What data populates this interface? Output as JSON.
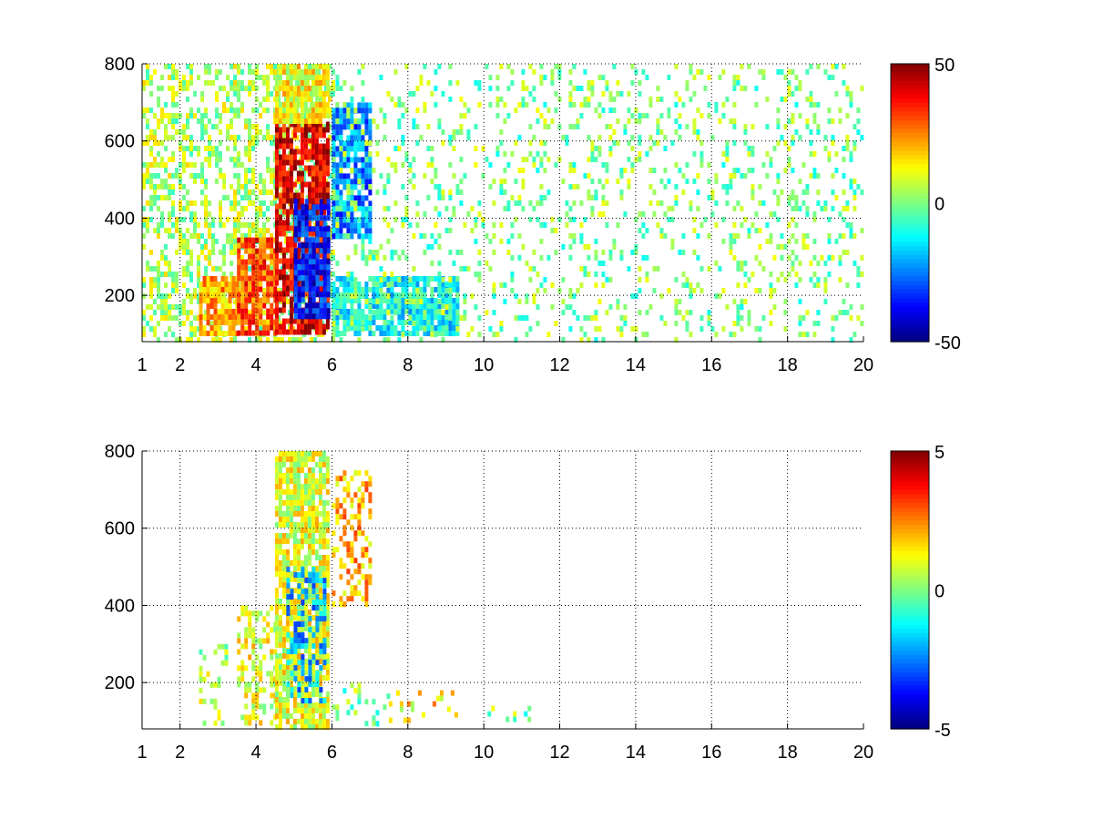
{
  "chart_data": [
    {
      "type": "heatmap",
      "title": "",
      "xlabel": "",
      "ylabel": "",
      "xlim": [
        1,
        20
      ],
      "ylim": [
        80,
        800
      ],
      "xticks": [
        1,
        2,
        4,
        6,
        8,
        10,
        12,
        14,
        16,
        18,
        20
      ],
      "yticks": [
        200,
        400,
        600,
        800
      ],
      "grid": true,
      "colormap": "jet",
      "colorbar": {
        "clim": [
          -50,
          50
        ],
        "ticks": [
          50,
          0,
          -50
        ]
      },
      "regions": [
        {
          "x": [
            1.0,
            6.0
          ],
          "y": [
            80,
            800
          ],
          "level": "scattered",
          "value": 5
        },
        {
          "x": [
            2.5,
            3.5
          ],
          "y": [
            100,
            250
          ],
          "level": "dense",
          "value": 20
        },
        {
          "x": [
            3.5,
            4.5
          ],
          "y": [
            100,
            350
          ],
          "level": "dense",
          "value": 30
        },
        {
          "x": [
            4.5,
            5.9
          ],
          "y": [
            100,
            650
          ],
          "level": "dense",
          "value": 40
        },
        {
          "x": [
            4.5,
            5.9
          ],
          "y": [
            650,
            800
          ],
          "level": "dense",
          "value": 12
        },
        {
          "x": [
            5.0,
            5.9
          ],
          "y": [
            150,
            450
          ],
          "level": "dense",
          "value": -35
        },
        {
          "x": [
            6.0,
            7.0
          ],
          "y": [
            350,
            700
          ],
          "level": "dense",
          "value": -25
        },
        {
          "x": [
            6.0,
            9.3
          ],
          "y": [
            100,
            250
          ],
          "level": "dense",
          "value": -12
        },
        {
          "x": [
            6.0,
            20.0
          ],
          "y": [
            80,
            800
          ],
          "level": "sparse",
          "value": 0
        }
      ]
    },
    {
      "type": "heatmap",
      "title": "",
      "xlabel": "",
      "ylabel": "",
      "xlim": [
        1,
        20
      ],
      "ylim": [
        80,
        800
      ],
      "xticks": [
        1,
        2,
        4,
        6,
        8,
        10,
        12,
        14,
        16,
        18,
        20
      ],
      "yticks": [
        200,
        400,
        600,
        800
      ],
      "grid": true,
      "colormap": "jet",
      "colorbar": {
        "clim": [
          -5,
          5
        ],
        "ticks": [
          5,
          0,
          -5
        ]
      },
      "regions": [
        {
          "x": [
            2.5,
            3.5
          ],
          "y": [
            90,
            300
          ],
          "level": "sparse",
          "value": 0.5
        },
        {
          "x": [
            3.5,
            4.5
          ],
          "y": [
            90,
            400
          ],
          "level": "scattered",
          "value": 1
        },
        {
          "x": [
            4.5,
            5.9
          ],
          "y": [
            90,
            800
          ],
          "level": "dense",
          "value": 1
        },
        {
          "x": [
            4.8,
            5.8
          ],
          "y": [
            150,
            500
          ],
          "level": "scattered",
          "value": -2
        },
        {
          "x": [
            6.0,
            7.0
          ],
          "y": [
            400,
            750
          ],
          "level": "scattered",
          "value": 2
        },
        {
          "x": [
            6.0,
            7.5
          ],
          "y": [
            100,
            200
          ],
          "level": "sparse",
          "value": 0
        },
        {
          "x": [
            7.5,
            9.3
          ],
          "y": [
            100,
            180
          ],
          "level": "sparse",
          "value": 1.5
        },
        {
          "x": [
            10.0,
            11.3
          ],
          "y": [
            110,
            140
          ],
          "level": "sparse",
          "value": 0
        }
      ]
    }
  ]
}
